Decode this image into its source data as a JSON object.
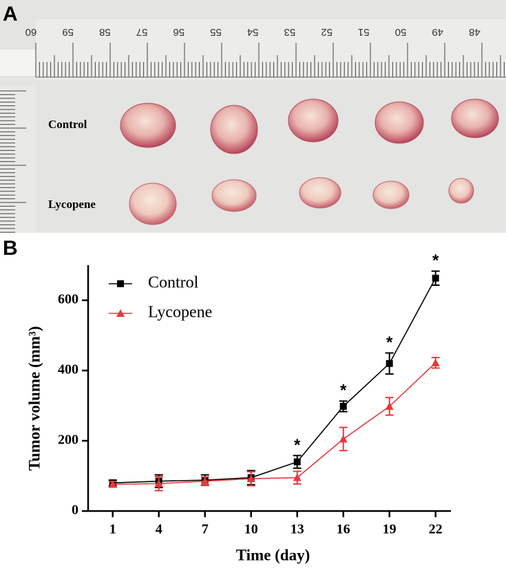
{
  "panel_a": {
    "label": "A",
    "row_labels": [
      "Control",
      "Lycopene"
    ],
    "ruler_labels": [
      "60",
      "59",
      "58",
      "57",
      "56",
      "55",
      "54",
      "53",
      "52",
      "51",
      "50",
      "49",
      "48"
    ]
  },
  "chart_data": {
    "type": "line",
    "panel_label": "B",
    "x_label": "Time (day)",
    "y_label": "Tumor volume (mm³)",
    "x": [
      1,
      4,
      7,
      10,
      13,
      16,
      19,
      22
    ],
    "series": [
      {
        "name": "Control",
        "color": "#000000",
        "marker": "square",
        "values": [
          80,
          85,
          88,
          95,
          140,
          298,
          420,
          663
        ],
        "errors": [
          8,
          18,
          15,
          20,
          18,
          15,
          30,
          20
        ],
        "significance_labels": [
          null,
          null,
          null,
          null,
          "*",
          "*",
          "*",
          "*"
        ]
      },
      {
        "name": "Lycopene",
        "color": "#e8383d",
        "marker": "triangle",
        "values": [
          76,
          78,
          85,
          92,
          95,
          205,
          298,
          422
        ],
        "errors": [
          8,
          20,
          12,
          20,
          18,
          33,
          25,
          15
        ]
      }
    ],
    "xlim": [
      -0.6,
      23
    ],
    "ylim": [
      0,
      700
    ],
    "xticks": [
      1,
      4,
      7,
      10,
      13,
      16,
      19,
      22
    ],
    "yticks": [
      0,
      200,
      400,
      600
    ],
    "legend": "upper left"
  }
}
